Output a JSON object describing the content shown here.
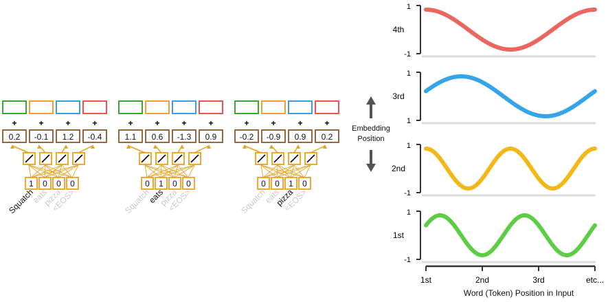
{
  "tokens": [
    "Squatch",
    "eats",
    "pizza",
    "<EOS>"
  ],
  "plus": "+",
  "groups": [
    {
      "active": 0,
      "embeddings": [
        "0.2",
        "-0.1",
        "1.2",
        "-0.4"
      ],
      "inputs": [
        "1",
        "0",
        "0",
        "0"
      ]
    },
    {
      "active": 1,
      "embeddings": [
        "1.1",
        "0.6",
        "-1.3",
        "0.9"
      ],
      "inputs": [
        "0",
        "1",
        "0",
        "0"
      ]
    },
    {
      "active": 2,
      "embeddings": [
        "-0.2",
        "-0.9",
        "0.9",
        "0.2"
      ],
      "inputs": [
        "0",
        "0",
        "1",
        "0"
      ]
    }
  ],
  "slot_colors": [
    "#3aa635",
    "#f0a030",
    "#3d9be0",
    "#e8554e"
  ],
  "colors": {
    "weight_box": "#8a5a2b",
    "activation": "#e8a21a",
    "muted_text": "#c8c8c8",
    "arrow": "#555555",
    "axis": "#333333"
  },
  "embedding_axis": {
    "line1": "Embedding",
    "line2": "Position"
  },
  "plots": [
    {
      "label": "4th",
      "y_top": "1",
      "y_bottom": "-1",
      "color": "#e8554e",
      "cycles": 1.0,
      "phase": "cos-plus"
    },
    {
      "label": "3rd",
      "y_top": "1",
      "y_bottom": "1",
      "color": "#1e9be8",
      "cycles": 1.0,
      "phase": "sin-shift"
    },
    {
      "label": "2nd",
      "y_top": "1",
      "y_bottom": "-1",
      "color": "#f0b000",
      "cycles": 2.0,
      "phase": "cos-plus"
    },
    {
      "label": "1st",
      "y_top": "1",
      "y_bottom": "-1",
      "color": "#4cc832",
      "cycles": 2.0,
      "phase": "sin-base"
    }
  ],
  "x_axis": {
    "ticks": [
      "1st",
      "2nd",
      "3rd",
      "etc..."
    ],
    "title": "Word (Token) Position in Input"
  }
}
